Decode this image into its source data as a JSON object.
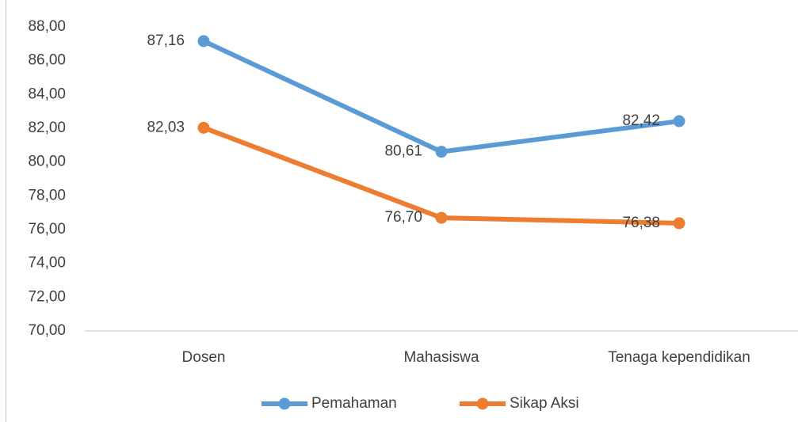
{
  "chart_data": {
    "type": "line",
    "categories": [
      "Dosen",
      "Mahasiswa",
      "Tenaga kependidikan"
    ],
    "series": [
      {
        "name": "Pemahaman",
        "color": "#5b9bd5",
        "values": [
          87.16,
          80.61,
          82.42
        ],
        "value_labels": [
          "87,16",
          "80,61",
          "82,42"
        ]
      },
      {
        "name": "Sikap Aksi",
        "color": "#ed7d31",
        "values": [
          82.03,
          76.7,
          76.38
        ],
        "value_labels": [
          "82,03",
          "76,70",
          "76,38"
        ]
      }
    ],
    "ylim": [
      70,
      88
    ],
    "yticks": [
      {
        "value": 70,
        "label": "70,00"
      },
      {
        "value": 72,
        "label": "72,00"
      },
      {
        "value": 74,
        "label": "74,00"
      },
      {
        "value": 76,
        "label": "76,00"
      },
      {
        "value": 78,
        "label": "78,00"
      },
      {
        "value": 80,
        "label": "80,00"
      },
      {
        "value": 82,
        "label": "82,00"
      },
      {
        "value": 84,
        "label": "84,00"
      },
      {
        "value": 86,
        "label": "86,00"
      },
      {
        "value": 88,
        "label": "88,00"
      }
    ],
    "grid": false,
    "legend": "bottom"
  }
}
